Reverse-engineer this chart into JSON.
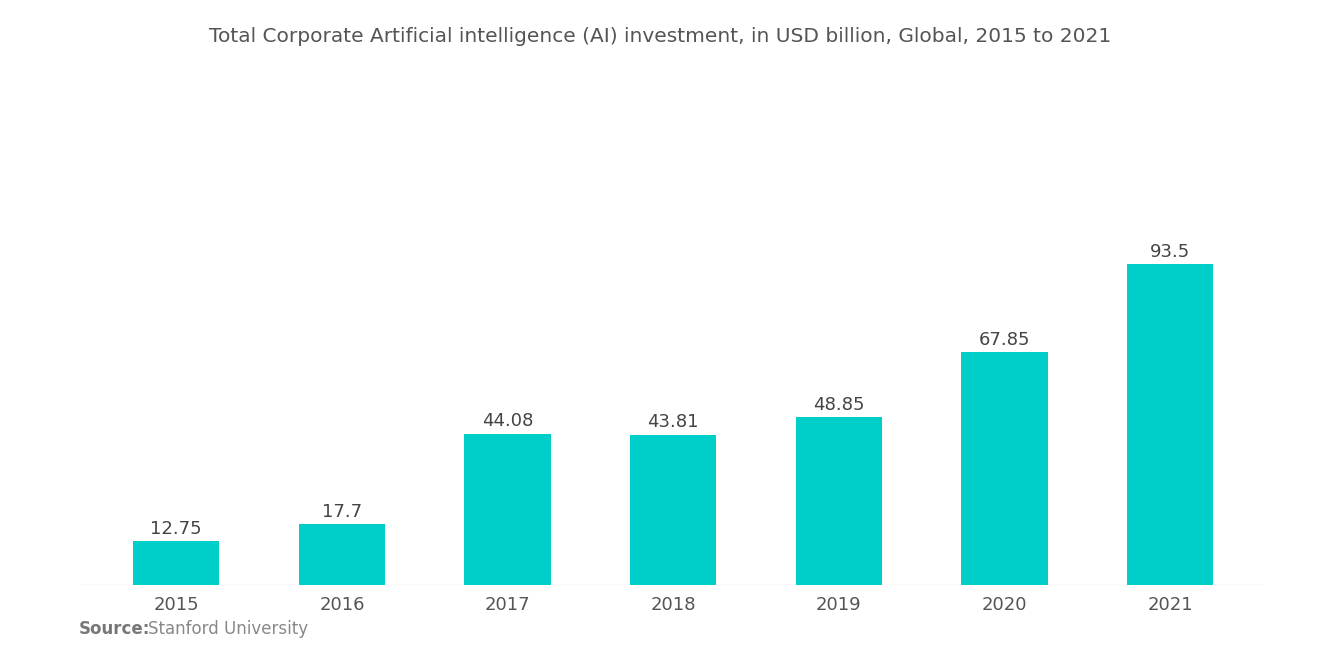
{
  "title": "Total Corporate Artificial intelligence (AI) investment, in USD billion, Global, 2015 to 2021",
  "categories": [
    "2015",
    "2016",
    "2017",
    "2018",
    "2019",
    "2020",
    "2021"
  ],
  "values": [
    12.75,
    17.7,
    44.08,
    43.81,
    48.85,
    67.85,
    93.5
  ],
  "bar_color": "#00CEC9",
  "title_color": "#555555",
  "label_color": "#444444",
  "xtick_color": "#555555",
  "background_color": "#ffffff",
  "source_bold": "Source:",
  "source_text": "Stanford University",
  "title_fontsize": 14.5,
  "label_fontsize": 13,
  "xtick_fontsize": 13,
  "source_fontsize": 12,
  "bar_width": 0.52,
  "ylim": [
    0,
    120
  ]
}
